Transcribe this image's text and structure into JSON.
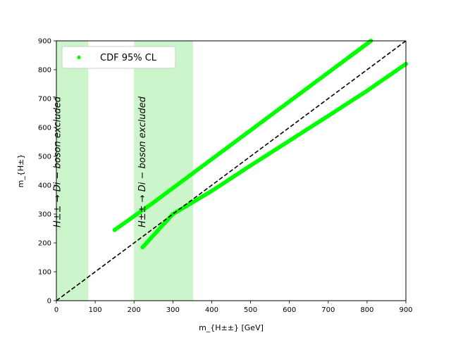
{
  "chart_data": {
    "type": "scatter",
    "title": "",
    "xlabel": "m_{H±±} [GeV]",
    "ylabel": "m_{H±}",
    "xlim": [
      0,
      900
    ],
    "ylim": [
      0,
      900
    ],
    "xticks": [
      "0",
      "100",
      "200",
      "300",
      "400",
      "500",
      "600",
      "700",
      "800",
      "900"
    ],
    "yticks": [
      "0",
      "100",
      "200",
      "300",
      "400",
      "500",
      "600",
      "700",
      "800",
      "900"
    ],
    "grid": false,
    "legend": {
      "position": "top-left",
      "entries": [
        "CDF 95% CL"
      ]
    },
    "colors": {
      "points": "#00ff00",
      "band": "#ccf5cc",
      "diagonal": "#000000"
    },
    "excluded_regions": [
      {
        "x_range": [
          0,
          82
        ],
        "label": "H±± → Di − boson excluded"
      },
      {
        "x_range": [
          200,
          352
        ],
        "label": "H±± → Di − boson excluded"
      }
    ],
    "reference_line": {
      "style": "dashed",
      "x": [
        0,
        900
      ],
      "y": [
        0,
        900
      ]
    },
    "series": [
      {
        "name": "CDF 95% CL",
        "branches": [
          {
            "x": [
              150,
              250,
              350,
              450,
              550,
              650,
              750,
              810
            ],
            "y": [
              245,
              340,
              440,
              540,
              640,
              740,
              840,
              900
            ]
          },
          {
            "x": [
              222,
              300,
              400,
              500,
              600,
              700,
              800,
              900
            ],
            "y": [
              185,
              300,
              380,
              468,
              554,
              640,
              727,
              820
            ]
          }
        ]
      }
    ]
  }
}
